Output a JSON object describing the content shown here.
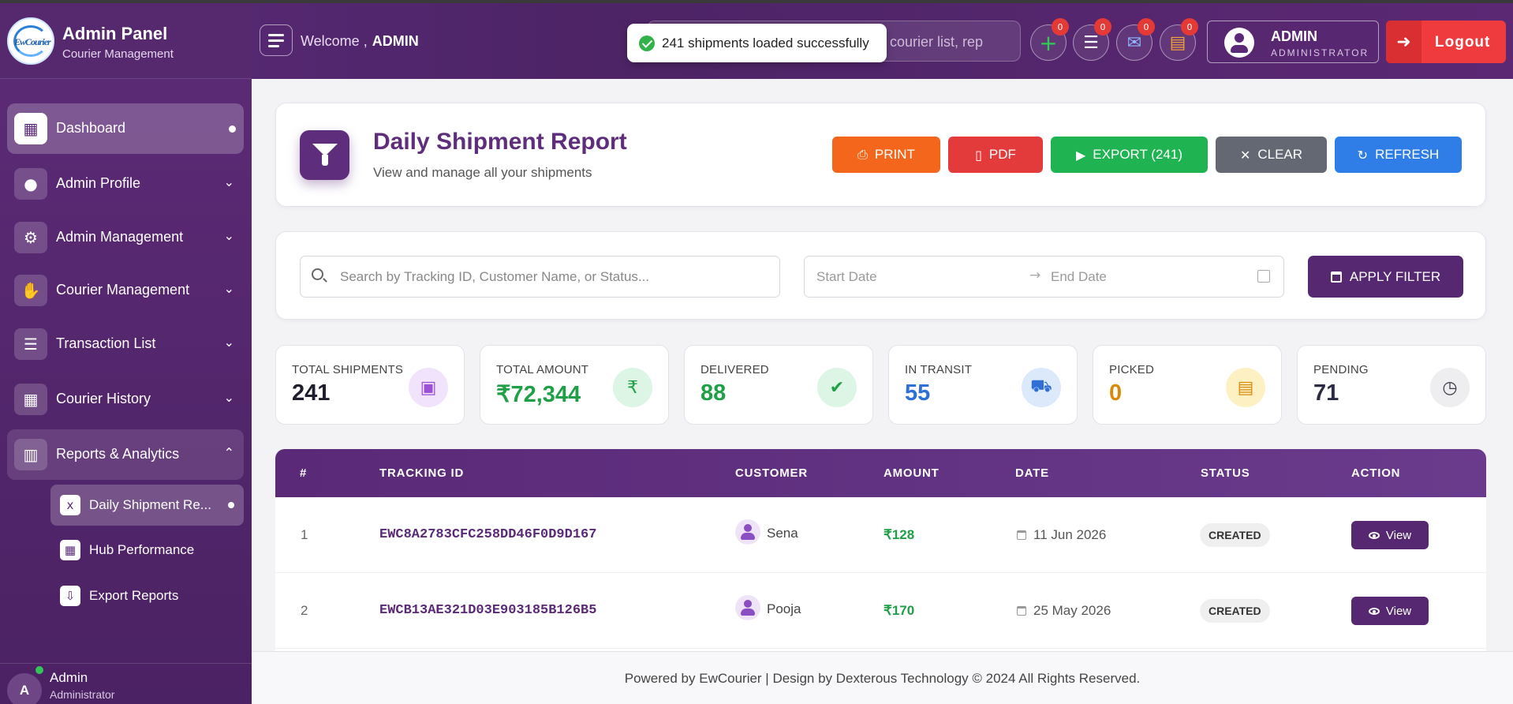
{
  "brand": {
    "title": "Admin Panel",
    "subtitle": "Courier Management",
    "logo_text": "EwCourier"
  },
  "header": {
    "welcome": "Welcome ,",
    "user": "ADMIN",
    "search_placeholder": "courier list, rep",
    "toast": "241 shipments loaded successfully",
    "icons": [
      {
        "name": "add-icon",
        "badge": "0",
        "color": "#2ecc55"
      },
      {
        "name": "list-icon",
        "badge": "0",
        "color": "#ffffff"
      },
      {
        "name": "mail-icon",
        "badge": "0",
        "color": "#8fb8ff"
      },
      {
        "name": "clipboard-icon",
        "badge": "0",
        "color": "#f0a23a"
      }
    ],
    "account": {
      "name": "ADMIN",
      "role": "ADMINISTRATOR"
    },
    "logout": "Logout"
  },
  "sidebar": {
    "items": [
      {
        "label": "Dashboard",
        "icon": "grid-icon"
      },
      {
        "label": "Admin Profile",
        "icon": "user-icon"
      },
      {
        "label": "Admin Management",
        "icon": "user-cog-icon"
      },
      {
        "label": "Courier Management",
        "icon": "handshake-icon"
      },
      {
        "label": "Transaction List",
        "icon": "list-icon"
      },
      {
        "label": "Courier History",
        "icon": "grid-icon"
      },
      {
        "label": "Reports & Analytics",
        "icon": "chart-icon"
      }
    ],
    "subitems": [
      {
        "label": "Daily Shipment Re...",
        "icon": "excel-file-icon"
      },
      {
        "label": "Hub Performance",
        "icon": "building-icon"
      },
      {
        "label": "Export Reports",
        "icon": "download-icon"
      }
    ],
    "footer": {
      "avatar": "A",
      "name": "Admin",
      "role": "Administrator"
    }
  },
  "page": {
    "title": "Daily Shipment Report",
    "subtitle": "View and manage all your shipments",
    "actions": {
      "print": "PRINT",
      "pdf": "PDF",
      "export": "EXPORT (241)",
      "clear": "CLEAR",
      "refresh": "REFRESH"
    }
  },
  "filters": {
    "search_placeholder": "Search by Tracking ID, Customer Name, or Status...",
    "start_date": "Start Date",
    "end_date": "End Date",
    "apply": "APPLY FILTER"
  },
  "stats": [
    {
      "label": "TOTAL SHIPMENTS",
      "value": "241",
      "color": "#1e1e2e",
      "icon": "box-icon",
      "icon_bg": "#f1e3fb",
      "icon_color": "#9b4fd6"
    },
    {
      "label": "TOTAL AMOUNT",
      "value": "₹72,344",
      "color": "#1fa046",
      "icon": "rupee-icon",
      "icon_bg": "#dcf5e4",
      "icon_color": "#1fa046"
    },
    {
      "label": "DELIVERED",
      "value": "88",
      "color": "#1fa046",
      "icon": "check-circle-icon",
      "icon_bg": "#dcf5e4",
      "icon_color": "#1fa046"
    },
    {
      "label": "IN TRANSIT",
      "value": "55",
      "color": "#2f6fd6",
      "icon": "truck-icon",
      "icon_bg": "#dce9fb",
      "icon_color": "#2f6fd6"
    },
    {
      "label": "PICKED",
      "value": "0",
      "color": "#d98a0a",
      "icon": "warehouse-icon",
      "icon_bg": "#fdf1c4",
      "icon_color": "#d98a0a"
    },
    {
      "label": "PENDING",
      "value": "71",
      "color": "#2b2b44",
      "icon": "clock-icon",
      "icon_bg": "#eeeef0",
      "icon_color": "#3a3a48"
    }
  ],
  "table": {
    "columns": [
      "#",
      "TRACKING ID",
      "CUSTOMER",
      "AMOUNT",
      "DATE",
      "STATUS",
      "ACTION"
    ],
    "rows": [
      {
        "idx": "1",
        "tracking": "EWC8A2783CFC258DD46F0D9D167",
        "customer": "Sena",
        "amount": "₹128",
        "date": "11 Jun 2026",
        "status": "CREATED",
        "action": "View"
      },
      {
        "idx": "2",
        "tracking": "EWCB13AE321D03E903185B126B5",
        "customer": "Pooja",
        "amount": "₹170",
        "date": "25 May 2026",
        "status": "CREATED",
        "action": "View"
      }
    ]
  },
  "footer": "Powered by EwCourier | Design by Dexterous Technology © 2024 All Rights Reserved."
}
